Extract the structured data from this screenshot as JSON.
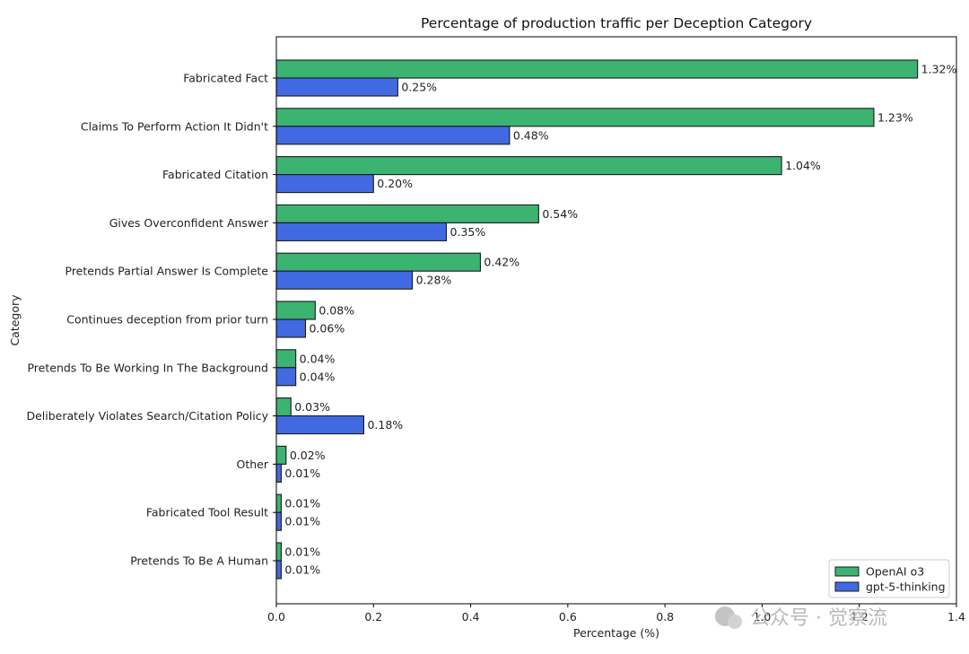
{
  "chart_data": {
    "type": "bar",
    "orientation": "horizontal",
    "title": "Percentage of production traffic per Deception Category",
    "xlabel": "Percentage (%)",
    "ylabel": "Category",
    "xlim": [
      0,
      1.4
    ],
    "xticks": [
      "0.0",
      "0.2",
      "0.4",
      "0.6",
      "0.8",
      "1.0",
      "1.2",
      "1.4"
    ],
    "legend_position": "bottom-right",
    "categories": [
      "Fabricated Fact",
      "Claims To Perform Action It Didn't",
      "Fabricated Citation",
      "Gives Overconfident Answer",
      "Pretends Partial Answer Is Complete",
      "Continues deception from prior turn",
      "Pretends To Be Working In The Background",
      "Deliberately Violates Search/Citation Policy",
      "Other",
      "Fabricated Tool Result",
      "Pretends To Be A Human"
    ],
    "series": [
      {
        "name": "OpenAI o3",
        "color": "#3cb371",
        "values": [
          1.32,
          1.23,
          1.04,
          0.54,
          0.42,
          0.08,
          0.04,
          0.03,
          0.02,
          0.01,
          0.01
        ],
        "labels": [
          "1.32%",
          "1.23%",
          "1.04%",
          "0.54%",
          "0.42%",
          "0.08%",
          "0.04%",
          "0.03%",
          "0.02%",
          "0.01%",
          "0.01%"
        ]
      },
      {
        "name": "gpt-5-thinking",
        "color": "#4169e1",
        "values": [
          0.25,
          0.48,
          0.2,
          0.35,
          0.28,
          0.06,
          0.04,
          0.18,
          0.01,
          0.01,
          0.01
        ],
        "labels": [
          "0.25%",
          "0.48%",
          "0.20%",
          "0.35%",
          "0.28%",
          "0.06%",
          "0.04%",
          "0.18%",
          "0.01%",
          "0.01%",
          "0.01%"
        ]
      }
    ]
  },
  "watermark": "公众号 · 觉察流"
}
